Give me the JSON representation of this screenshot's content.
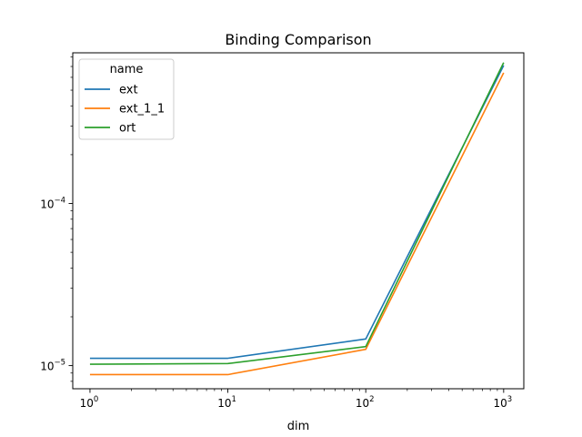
{
  "chart_data": {
    "type": "line",
    "title": "Binding Comparison",
    "xlabel": "dim",
    "ylabel": "",
    "xscale": "log",
    "yscale": "log",
    "xlim": [
      0.75,
      1400
    ],
    "ylim": [
      7.2e-06,
      0.00085
    ],
    "x": [
      1,
      10,
      100,
      1000
    ],
    "x_ticks": [
      {
        "value": 1,
        "base": "10",
        "exp": "0"
      },
      {
        "value": 10,
        "base": "10",
        "exp": "1"
      },
      {
        "value": 100,
        "base": "10",
        "exp": "2"
      },
      {
        "value": 1000,
        "base": "10",
        "exp": "3"
      }
    ],
    "y_ticks": [
      {
        "value": 1e-05,
        "base": "10",
        "exp": "−5"
      },
      {
        "value": 0.0001,
        "base": "10",
        "exp": "−4"
      }
    ],
    "legend": {
      "title": "name",
      "placement": "top-left"
    },
    "grid": false,
    "series": [
      {
        "name": "ext",
        "color": "#1f77b4",
        "values": [
          1.11e-05,
          1.11e-05,
          1.46e-05,
          0.00071
        ]
      },
      {
        "name": "ext_1_1",
        "color": "#ff7f0e",
        "values": [
          8.8e-06,
          8.8e-06,
          1.26e-05,
          0.00064
        ]
      },
      {
        "name": "ort",
        "color": "#2ca02c",
        "values": [
          1.02e-05,
          1.03e-05,
          1.31e-05,
          0.00074
        ]
      }
    ]
  }
}
